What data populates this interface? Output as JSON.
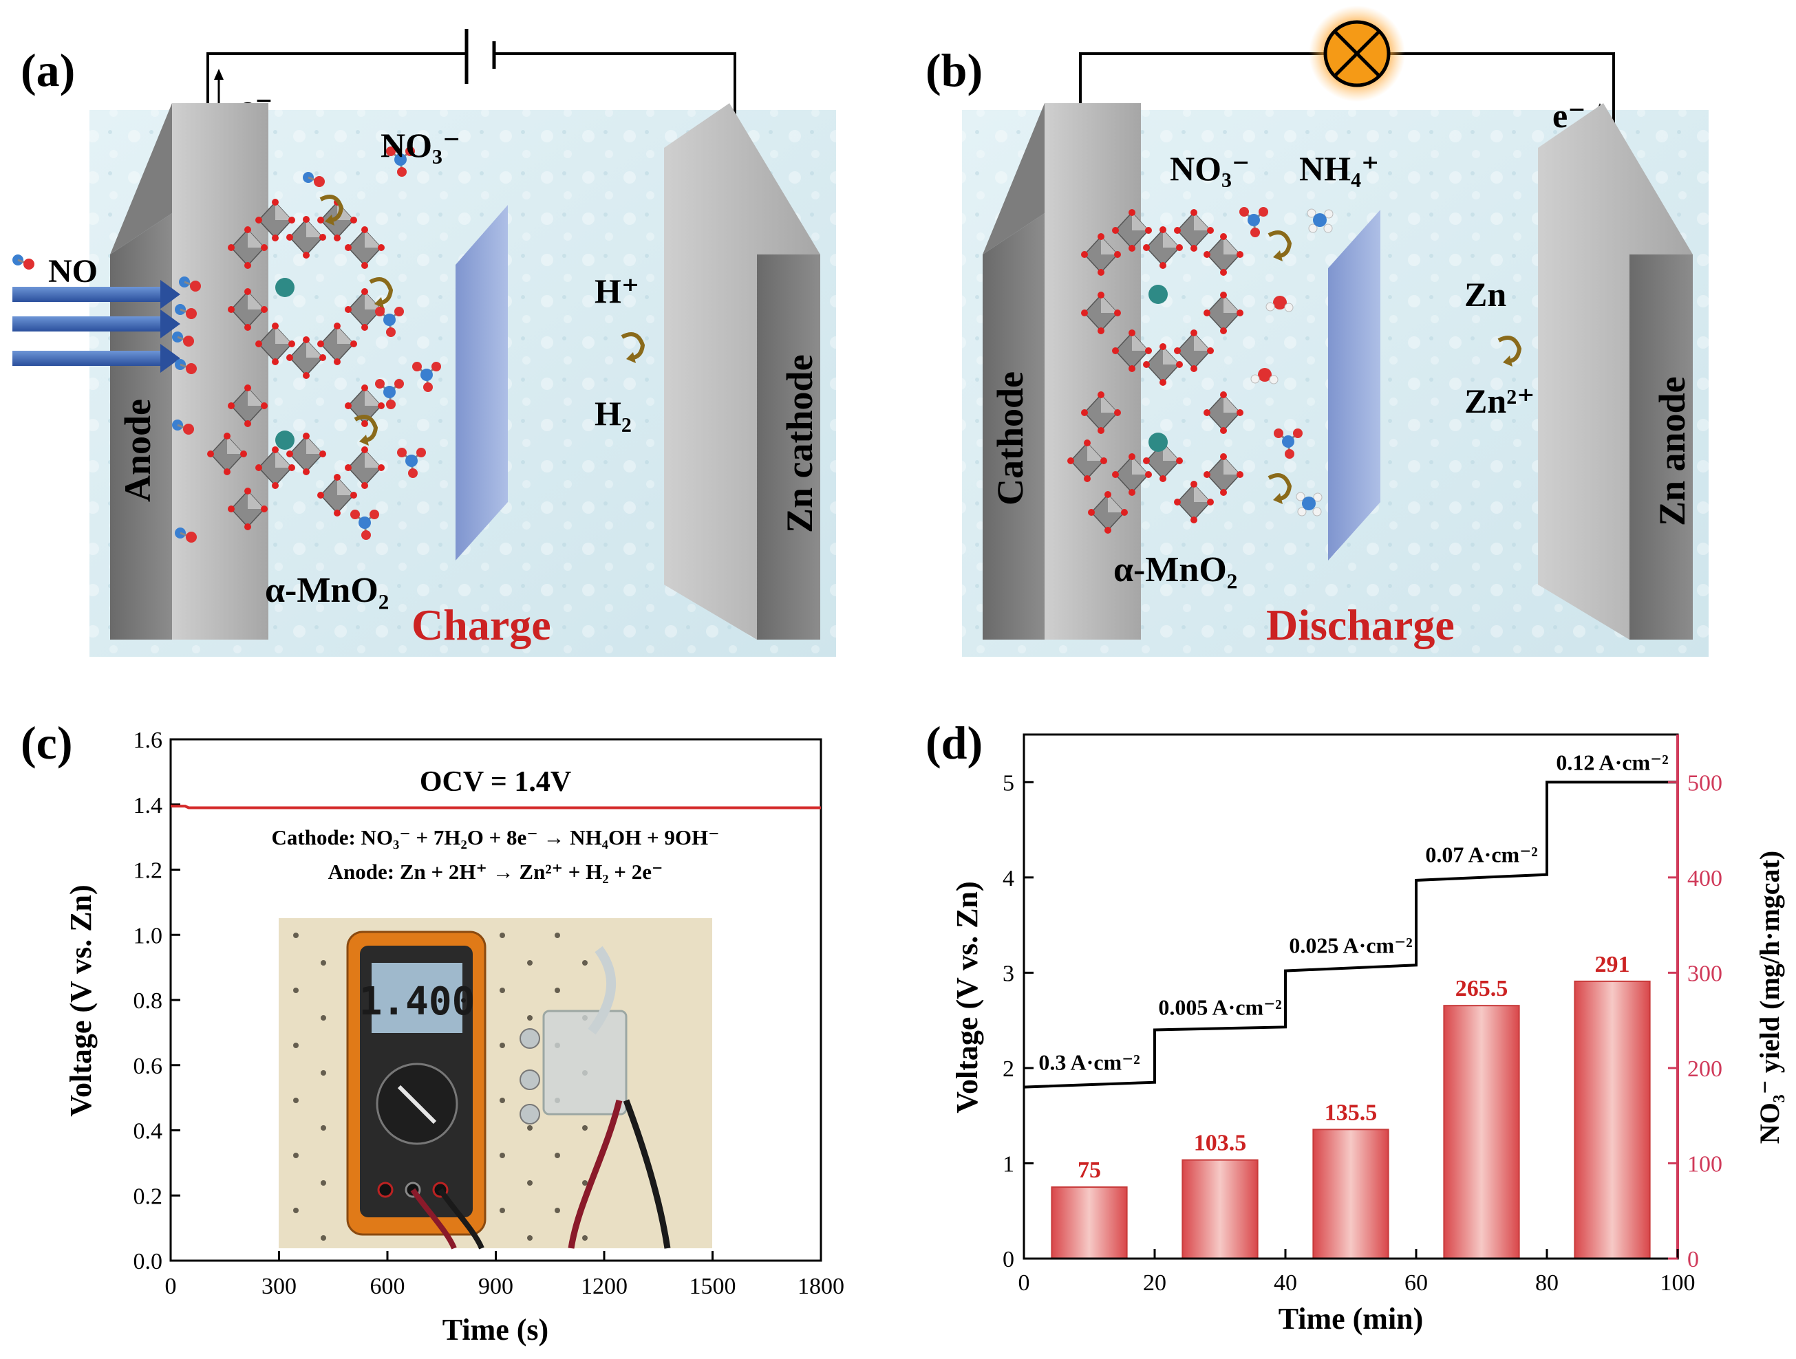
{
  "panels": {
    "a": {
      "label": "(a)",
      "electron": "e⁻",
      "gas": "NO",
      "product": "NO₃⁻",
      "proton": "H⁺",
      "hydrogen": "H₂",
      "electrode_left": "Anode",
      "electrode_right": "Zn cathode",
      "catalyst": "α-MnO₂",
      "mode": "Charge"
    },
    "b": {
      "label": "(b)",
      "electron": "e⁻",
      "reactant": "NO₃⁻",
      "product": "NH₄⁺",
      "metal": "Zn",
      "ion": "Zn²⁺",
      "electrode_left": "Cathode",
      "electrode_right": "Zn anode",
      "catalyst": "α-MnO₂",
      "mode": "Discharge"
    },
    "c": {
      "label": "(c)",
      "ocv_text": "OCV = 1.4V",
      "cathode_eq": "Cathode:  NO₃⁻ + 7H₂O + 8e⁻ → NH₄OH + 9OH⁻",
      "anode_eq": "Anode:  Zn + 2H⁺ → Zn²⁺ + H₂ + 2e⁻",
      "meter_reading": "1.400"
    },
    "d": {
      "label": "(d)"
    }
  },
  "colors": {
    "red_text": "#cc2222",
    "ocv_line": "#d42a2a",
    "axis_right": "#d03a5a",
    "electrode": "#9a9a9a",
    "membrane": "#8fa6d6",
    "bg_tile": "#d9ecf2",
    "bar_edge": "#c83a3a"
  },
  "chart_data": [
    {
      "panel": "c",
      "type": "line",
      "title": "",
      "xlabel": "Time (s)",
      "ylabel": "Voltage (V vs. Zn)",
      "xlim": [
        0,
        1800
      ],
      "ylim": [
        0,
        1.6
      ],
      "x_ticks": [
        "0",
        "300",
        "600",
        "900",
        "1200",
        "1500",
        "1800"
      ],
      "y_ticks": [
        "0.0",
        "0.2",
        "0.4",
        "0.6",
        "0.8",
        "1.0",
        "1.2",
        "1.4",
        "1.6"
      ],
      "series": [
        {
          "name": "OCV",
          "x": [
            0,
            40,
            50,
            1800
          ],
          "y": [
            1.395,
            1.395,
            1.39,
            1.39
          ]
        }
      ]
    },
    {
      "panel": "d",
      "type": "bar+line",
      "xlabel": "Time (min)",
      "ylabel_left": "Voltage (V vs. Zn)",
      "ylabel_right": "NO₃⁻ yield (mg/h·mgcat)",
      "xlim": [
        0,
        100
      ],
      "ylim_left": [
        0,
        5.5
      ],
      "ylim_right": [
        0,
        550
      ],
      "x_ticks": [
        "0",
        "20",
        "40",
        "60",
        "80",
        "100"
      ],
      "y_ticks_left": [
        "0",
        "1",
        "2",
        "3",
        "4",
        "5"
      ],
      "y_ticks_right": [
        "0",
        "100",
        "200",
        "300",
        "400",
        "500"
      ],
      "voltage_steps": [
        {
          "x0": 0,
          "x1": 20,
          "y0": 1.8,
          "y1": 1.85,
          "label": "0.3 A·cm⁻²"
        },
        {
          "x0": 20,
          "x1": 40,
          "y0": 2.4,
          "y1": 2.43,
          "label": "0.005 A·cm⁻²"
        },
        {
          "x0": 40,
          "x1": 60,
          "y0": 3.02,
          "y1": 3.08,
          "label": "0.025 A·cm⁻²"
        },
        {
          "x0": 60,
          "x1": 80,
          "y0": 3.97,
          "y1": 4.03,
          "label": "0.07 A·cm⁻²"
        },
        {
          "x0": 80,
          "x1": 100,
          "y0": 5.0,
          "y1": 5.0,
          "label": "0.12 A·cm⁻²"
        }
      ],
      "bars": {
        "x": [
          10,
          30,
          50,
          70,
          90
        ],
        "values": [
          75,
          103.5,
          135.5,
          265.5,
          291
        ],
        "labels": [
          "75",
          "103.5",
          "135.5",
          "265.5",
          "291"
        ]
      }
    }
  ]
}
